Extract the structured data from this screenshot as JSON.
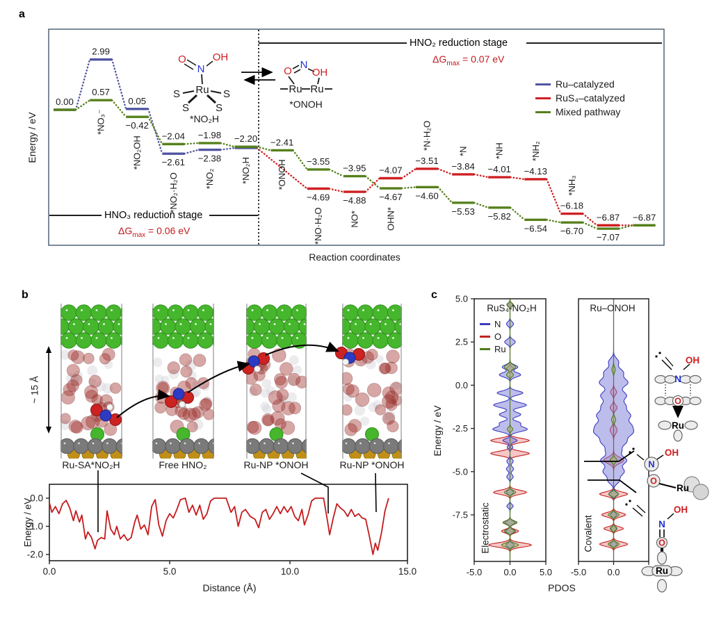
{
  "panel_a": {
    "letter": "a",
    "ylabel": "Energy / eV",
    "xlabel": "Reaction coordinates",
    "hno2_stage": {
      "title": "HNO₂ reduction stage",
      "dg": "ΔG",
      "dg_sub": "max",
      "dg_val": "= 0.07 eV"
    },
    "hno3_stage": {
      "title": "HNO₃ reduction stage",
      "dg": "ΔG",
      "dg_sub": "max",
      "dg_val": "= 0.06 eV"
    },
    "legend": [
      {
        "label": "Ru–catalyzed",
        "color": "#5154a1"
      },
      {
        "label": "RuS₄–catalyzed",
        "color": "#cf1f22"
      },
      {
        "label": "Mixed pathway",
        "color": "#56801c"
      }
    ],
    "insets": {
      "rus4": {
        "o": "O",
        "n": "N",
        "oh": "OH",
        "ru": "Ru",
        "s1": "S",
        "s2": "S",
        "s3": "S",
        "s4": "S",
        "caption": "*NO₂H"
      },
      "ruru": {
        "o": "O",
        "n": "N",
        "oh": "OH",
        "ru1": "Ru",
        "ru2": "Ru",
        "caption": "*ONOH"
      }
    },
    "chart_data": {
      "type": "energy_levels",
      "xlabel": "Reaction coordinates",
      "ylabel": "Energy / eV",
      "categories": [
        "",
        "*NO₃⁻",
        "*NO₂OH",
        "*NO₂·H₂O",
        "*NO₂",
        "*NO₂H",
        "*ONOH",
        "*NO·H₂O",
        "NO*",
        "OHN*",
        "*N·H₂O",
        "*N",
        "*NH",
        "*NH₂",
        "*NH₃",
        "",
        ""
      ],
      "species_side": [
        null,
        "b",
        "b",
        "b",
        "b",
        "b",
        "b",
        "b",
        "b",
        "b",
        "a",
        "a",
        "a",
        "a",
        "a",
        null,
        null
      ],
      "series": [
        {
          "name": "Ru–catalyzed",
          "color": "#5154a1",
          "values": [
            0.0,
            2.99,
            0.05,
            -2.61,
            -2.38,
            -2.27,
            null,
            null,
            null,
            null,
            null,
            null,
            null,
            null,
            null,
            null,
            null
          ],
          "label_sides": [
            "a",
            "a",
            "a",
            "b",
            "b",
            null,
            null,
            null,
            null,
            null,
            null,
            null,
            null,
            null,
            null,
            null,
            null
          ],
          "phantom": []
        },
        {
          "name": "RuS₄–catalyzed",
          "color": "#cf1f22",
          "values": [
            null,
            null,
            null,
            null,
            null,
            -2.27,
            null,
            -4.69,
            -4.88,
            -4.07,
            -3.51,
            -3.84,
            -4.01,
            -4.13,
            -6.18,
            -6.87,
            -6.87
          ],
          "label_sides": [
            null,
            null,
            null,
            null,
            null,
            null,
            null,
            "b",
            "b",
            "a",
            "a",
            "a",
            "a",
            "a",
            "a",
            "a",
            null
          ],
          "phantom": [
            5
          ]
        },
        {
          "name": "Mixed pathway",
          "color": "#56801c",
          "values": [
            0.0,
            0.57,
            -0.42,
            -2.04,
            -1.98,
            -2.2,
            -2.41,
            -3.55,
            -3.95,
            -4.67,
            -4.6,
            -5.53,
            -5.82,
            -6.54,
            -6.7,
            -7.07,
            -6.87
          ],
          "label_sides": [
            null,
            "a",
            "b",
            "a",
            "a",
            "a",
            "a",
            "a",
            "a",
            "b",
            "b",
            "b",
            "b",
            "b",
            "b",
            "b",
            "a"
          ],
          "phantom": []
        }
      ]
    }
  },
  "panel_b": {
    "letter": "b",
    "scale_label": "~ 15 Å",
    "captions": [
      "Ru-SA*NO₂H",
      "Free HNO₂",
      "Ru-NP *ONOH",
      "Ru-NP *ONOH"
    ],
    "plot": {
      "xlabel": "Distance (Å)",
      "ylabel": "Energy / eV",
      "x_ticks": [
        "0.0",
        "5.0",
        "10.0",
        "15.0"
      ],
      "y_ticks": [
        "0.0",
        "-1.0",
        "-2.0"
      ],
      "line_color": "#c51a1c"
    },
    "chart_data": {
      "type": "line",
      "xlabel": "Distance (Å)",
      "ylabel": "Energy / eV",
      "xlim": [
        0,
        15
      ],
      "ylim": [
        -2.2,
        0.5
      ],
      "points": [
        [
          0.0,
          -0.15
        ],
        [
          0.1,
          -0.5
        ],
        [
          0.25,
          -0.3
        ],
        [
          0.4,
          -0.55
        ],
        [
          0.55,
          -0.2
        ],
        [
          0.7,
          -0.08
        ],
        [
          0.85,
          -0.35
        ],
        [
          1.0,
          -0.8
        ],
        [
          1.1,
          -0.45
        ],
        [
          1.25,
          -0.85
        ],
        [
          1.35,
          -0.6
        ],
        [
          1.5,
          -1.45
        ],
        [
          1.6,
          -1.2
        ],
        [
          1.75,
          -1.4
        ],
        [
          1.9,
          -1.8
        ],
        [
          2.0,
          -1.5
        ],
        [
          2.15,
          -1.4
        ],
        [
          2.3,
          -1.45
        ],
        [
          2.4,
          -0.45
        ],
        [
          2.55,
          -1.1
        ],
        [
          2.7,
          -1.3
        ],
        [
          2.8,
          -1.0
        ],
        [
          2.95,
          -1.45
        ],
        [
          3.1,
          -1.3
        ],
        [
          3.25,
          -1.5
        ],
        [
          3.4,
          -1.4
        ],
        [
          3.55,
          -0.85
        ],
        [
          3.65,
          -0.6
        ],
        [
          3.8,
          -1.1
        ],
        [
          3.95,
          -0.95
        ],
        [
          4.1,
          -1.3
        ],
        [
          4.25,
          -0.3
        ],
        [
          4.4,
          -0.05
        ],
        [
          4.55,
          -0.95
        ],
        [
          4.7,
          -1.35
        ],
        [
          4.85,
          -0.8
        ],
        [
          5.0,
          -0.55
        ],
        [
          5.15,
          -0.7
        ],
        [
          5.3,
          -0.4
        ],
        [
          5.45,
          -0.05
        ],
        [
          5.65,
          0.0
        ],
        [
          5.8,
          -0.5
        ],
        [
          5.95,
          -0.25
        ],
        [
          6.1,
          -0.6
        ],
        [
          6.25,
          -0.25
        ],
        [
          6.4,
          -0.75
        ],
        [
          6.55,
          -0.55
        ],
        [
          6.7,
          -0.1
        ],
        [
          6.85,
          0.0
        ],
        [
          7.35,
          0.0
        ],
        [
          7.55,
          -0.5
        ],
        [
          7.7,
          -0.3
        ],
        [
          7.85,
          -1.0
        ],
        [
          8.0,
          -0.5
        ],
        [
          8.15,
          -0.4
        ],
        [
          8.35,
          -0.65
        ],
        [
          8.55,
          -0.75
        ],
        [
          8.7,
          -1.05
        ],
        [
          8.85,
          -0.5
        ],
        [
          9.0,
          -0.4
        ],
        [
          9.15,
          -0.75
        ],
        [
          9.3,
          -0.55
        ],
        [
          9.45,
          -0.3
        ],
        [
          9.6,
          -0.55
        ],
        [
          9.75,
          -0.3
        ],
        [
          9.9,
          -0.5
        ],
        [
          10.05,
          -0.3
        ],
        [
          10.2,
          -0.65
        ],
        [
          10.35,
          -0.8
        ],
        [
          10.5,
          -0.4
        ],
        [
          10.6,
          -0.95
        ],
        [
          10.75,
          -0.6
        ],
        [
          10.9,
          -0.1
        ],
        [
          11.05,
          0.0
        ],
        [
          11.4,
          0.0
        ],
        [
          11.55,
          -0.75
        ],
        [
          11.65,
          -1.3
        ],
        [
          11.8,
          -0.7
        ],
        [
          11.95,
          -0.2
        ],
        [
          12.1,
          -0.35
        ],
        [
          12.25,
          -0.45
        ],
        [
          12.4,
          -0.65
        ],
        [
          12.55,
          -0.4
        ],
        [
          12.7,
          -0.65
        ],
        [
          12.85,
          -0.55
        ],
        [
          13.0,
          -0.7
        ],
        [
          13.15,
          -0.75
        ],
        [
          13.3,
          -1.35
        ],
        [
          13.45,
          -2.0
        ],
        [
          13.55,
          -1.6
        ],
        [
          13.65,
          -1.85
        ],
        [
          13.8,
          -1.25
        ],
        [
          13.95,
          -0.45
        ],
        [
          14.1,
          0.0
        ]
      ]
    }
  },
  "panel_c": {
    "letter": "c",
    "ylabel": "Energy / eV",
    "xlabel": "PDOS",
    "legend": [
      {
        "label": "N",
        "color": "#3c3cc0"
      },
      {
        "label": "O",
        "color": "#c32222"
      },
      {
        "label": "Ru",
        "color": "#4f7c18"
      }
    ],
    "panels": [
      {
        "title": "RuS₄-NO₂H",
        "mode": "Electrostatic",
        "x_ticks": [
          "-5.0",
          "0.0",
          "5.0"
        ],
        "y_ticks": [
          "5.0",
          "2.5",
          "0.0",
          "-2.5",
          "-5.0",
          "-7.5"
        ]
      },
      {
        "title": "Ru–ONOH",
        "mode": "Covalent",
        "x_ticks": [
          "-5.0",
          "0.0",
          "5.0"
        ],
        "y_ticks": []
      }
    ],
    "orbitals": {
      "d1": {
        "oh": "OH",
        "n": "N",
        "o": "O",
        "ru": "Ru"
      },
      "d2": {
        "oh": "OH",
        "n": "N",
        "o": "O",
        "ru": "Ru"
      },
      "d3": {
        "oh": "OH",
        "n": "N",
        "o": "O",
        "ru": "Ru"
      }
    },
    "chart_data": [
      {
        "type": "area",
        "title": "RuS₄-NO₂H",
        "xlabel": "PDOS",
        "ylabel": "Energy / eV",
        "xlim": [
          -5,
          5
        ],
        "ylim": [
          -10.2,
          5
        ],
        "series": [
          {
            "name": "N",
            "color": "#3c3cc0",
            "peaks": [
              [
                4.65,
                0.35,
                0.1
              ],
              [
                3.55,
                0.5,
                0.12
              ],
              [
                2.5,
                0.75,
                0.13
              ],
              [
                1.05,
                1.1,
                0.12
              ],
              [
                0.6,
                1.5,
                0.13
              ],
              [
                -0.45,
                1.8,
                0.12
              ],
              [
                -1.15,
                2.3,
                0.14
              ],
              [
                -1.7,
                1.5,
                0.13
              ],
              [
                -2.2,
                1.4,
                0.12
              ],
              [
                -2.55,
                2.4,
                0.14
              ],
              [
                -3.2,
                1.0,
                0.1
              ],
              [
                -3.6,
                0.4,
                0.1
              ],
              [
                -4.4,
                0.45,
                0.12
              ],
              [
                -4.85,
                0.5,
                0.12
              ],
              [
                -5.3,
                0.45,
                0.12
              ],
              [
                -6.2,
                0.5,
                0.1
              ],
              [
                -7.0,
                0.45,
                0.1
              ],
              [
                -7.95,
                0.7,
                0.1
              ],
              [
                -8.45,
                0.6,
                0.1
              ],
              [
                -9.25,
                0.6,
                0.1
              ]
            ]
          },
          {
            "name": "O",
            "color": "#c32222",
            "peaks": [
              [
                0.95,
                0.5,
                0.1
              ],
              [
                -3.2,
                2.7,
                0.12
              ],
              [
                -3.95,
                2.7,
                0.12
              ],
              [
                -6.2,
                2.3,
                0.12
              ],
              [
                -7.95,
                0.9,
                0.1
              ],
              [
                -8.45,
                1.2,
                0.1
              ],
              [
                -9.25,
                3.0,
                0.12
              ]
            ]
          },
          {
            "name": "Ru",
            "color": "#4f7c18",
            "peaks": [
              [
                4.65,
                0.45,
                0.1
              ],
              [
                1.05,
                0.8,
                0.12
              ],
              [
                0.6,
                0.5,
                0.1
              ],
              [
                -2.55,
                0.4,
                0.1
              ],
              [
                -6.2,
                0.8,
                0.1
              ],
              [
                -7.95,
                1.0,
                0.1
              ],
              [
                -8.45,
                0.8,
                0.1
              ],
              [
                -9.25,
                1.2,
                0.1
              ]
            ]
          }
        ]
      },
      {
        "type": "area",
        "title": "Ru–ONOH",
        "xlabel": "PDOS",
        "ylabel": "Energy / eV",
        "xlim": [
          -5,
          5
        ],
        "ylim": [
          -10.2,
          5
        ],
        "series": [
          {
            "name": "N",
            "color": "#3c3cc0",
            "peaks": [
              [
                1.35,
                0.7,
                0.2
              ],
              [
                0.75,
                1.3,
                0.22
              ],
              [
                0.15,
                2.0,
                0.25
              ],
              [
                -0.6,
                1.8,
                0.25
              ],
              [
                -1.2,
                1.5,
                0.22
              ],
              [
                -1.75,
                2.3,
                0.25
              ],
              [
                -2.3,
                1.9,
                0.22
              ],
              [
                -2.75,
                2.5,
                0.25
              ],
              [
                -3.3,
                1.6,
                0.22
              ],
              [
                -3.8,
                1.0,
                0.2
              ],
              [
                -4.35,
                1.8,
                0.22
              ],
              [
                -5.0,
                1.5,
                0.25
              ],
              [
                -5.55,
                0.7,
                0.18
              ],
              [
                -6.3,
                0.7,
                0.12
              ],
              [
                -7.5,
                0.45,
                0.1
              ],
              [
                -8.3,
                0.4,
                0.1
              ],
              [
                -9.2,
                0.5,
                0.1
              ]
            ]
          },
          {
            "name": "O",
            "color": "#c32222",
            "peaks": [
              [
                -0.4,
                0.45,
                0.15
              ],
              [
                -1.3,
                0.5,
                0.15
              ],
              [
                -2.6,
                0.5,
                0.2
              ],
              [
                -4.35,
                1.4,
                0.18
              ],
              [
                -6.3,
                2.0,
                0.12
              ],
              [
                -7.5,
                1.7,
                0.12
              ],
              [
                -8.3,
                1.4,
                0.1
              ],
              [
                -9.2,
                2.0,
                0.12
              ]
            ]
          },
          {
            "name": "Ru",
            "color": "#4f7c18",
            "peaks": [
              [
                0.9,
                0.25,
                0.15
              ],
              [
                -2.0,
                0.3,
                0.15
              ],
              [
                -4.35,
                0.5,
                0.12
              ],
              [
                -6.3,
                0.7,
                0.1
              ],
              [
                -7.5,
                0.8,
                0.1
              ],
              [
                -8.3,
                0.5,
                0.1
              ],
              [
                -9.2,
                0.8,
                0.1
              ]
            ]
          }
        ]
      }
    ]
  }
}
